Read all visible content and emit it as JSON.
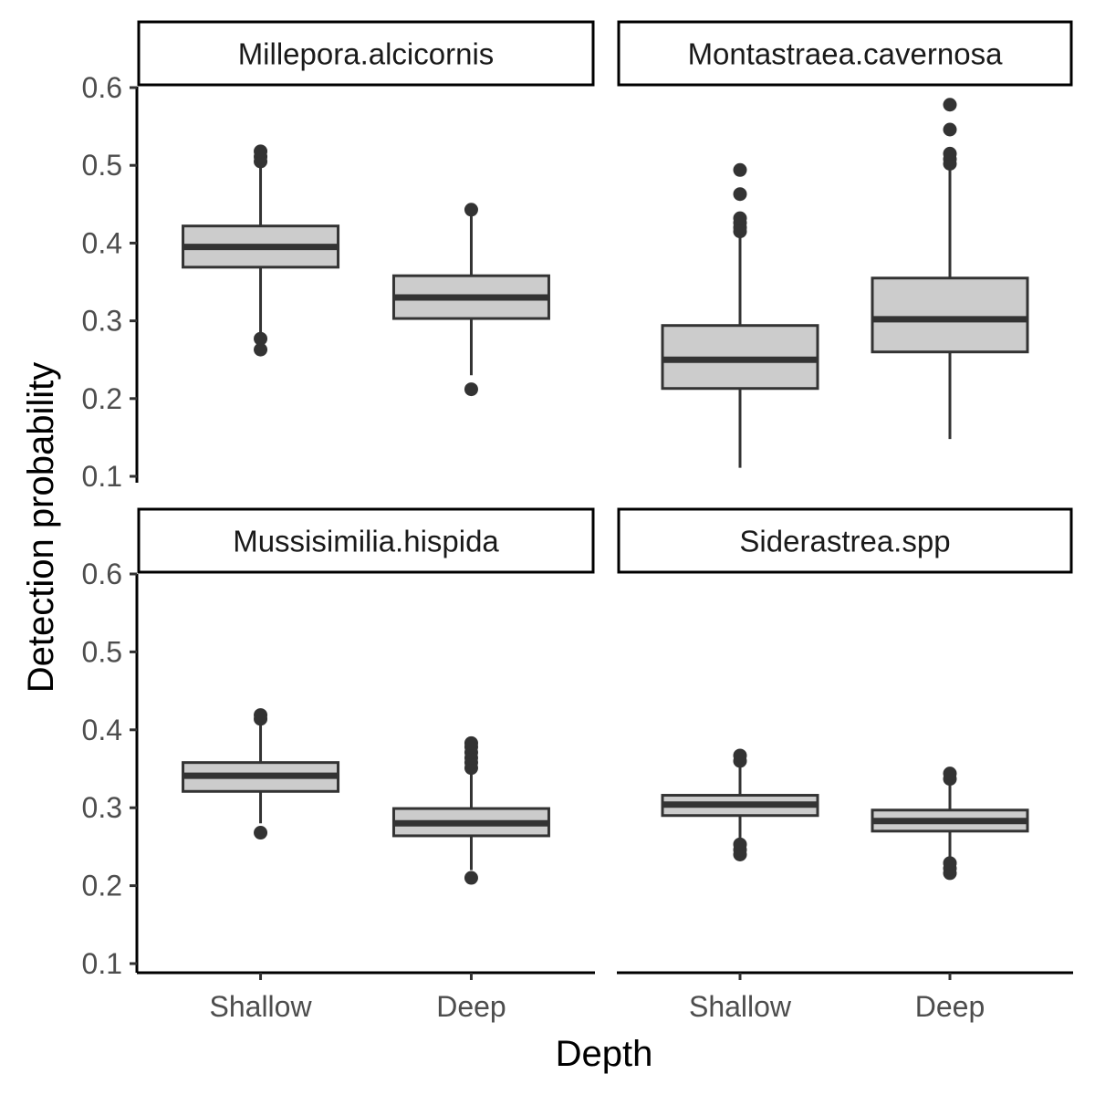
{
  "chart_data": {
    "type": "boxplot",
    "xlabel": "Depth",
    "ylabel": "Detection probability",
    "categories": [
      "Shallow",
      "Deep"
    ],
    "ylim": [
      0.1,
      0.6
    ],
    "yticks": [
      0.1,
      0.2,
      0.3,
      0.4,
      0.5,
      0.6
    ],
    "ytick_labels": [
      "0.1",
      "0.2",
      "0.3",
      "0.4",
      "0.5",
      "0.6"
    ],
    "grid": false,
    "facet_layout": "2x2",
    "colors": {
      "box_fill": "#cccccc",
      "box_line": "#333333",
      "axis": "#000000"
    },
    "panels": [
      {
        "title": "Millepora.alcicornis",
        "boxes": [
          {
            "category": "Shallow",
            "whisker_low": 0.281,
            "q1": 0.369,
            "median": 0.395,
            "q3": 0.422,
            "whisker_high": 0.5,
            "outliers": [
              0.263,
              0.277,
              0.505,
              0.511,
              0.518
            ]
          },
          {
            "category": "Deep",
            "whisker_low": 0.23,
            "q1": 0.303,
            "median": 0.33,
            "q3": 0.358,
            "whisker_high": 0.44,
            "outliers": [
              0.212,
              0.443
            ]
          }
        ]
      },
      {
        "title": "Montastraea.cavernosa",
        "boxes": [
          {
            "category": "Shallow",
            "whisker_low": 0.111,
            "q1": 0.213,
            "median": 0.25,
            "q3": 0.294,
            "whisker_high": 0.41,
            "outliers": [
              0.415,
              0.42,
              0.426,
              0.432,
              0.463,
              0.494
            ]
          },
          {
            "category": "Deep",
            "whisker_low": 0.148,
            "q1": 0.26,
            "median": 0.302,
            "q3": 0.355,
            "whisker_high": 0.497,
            "outliers": [
              0.502,
              0.508,
              0.515,
              0.546,
              0.578
            ]
          }
        ]
      },
      {
        "title": "Mussisimilia.hispida",
        "boxes": [
          {
            "category": "Shallow",
            "whisker_low": 0.28,
            "q1": 0.321,
            "median": 0.341,
            "q3": 0.358,
            "whisker_high": 0.41,
            "outliers": [
              0.268,
              0.414,
              0.419
            ]
          },
          {
            "category": "Deep",
            "whisker_low": 0.22,
            "q1": 0.264,
            "median": 0.28,
            "q3": 0.299,
            "whisker_high": 0.345,
            "outliers": [
              0.21,
              0.351,
              0.358,
              0.364,
              0.371,
              0.378,
              0.383
            ]
          }
        ]
      },
      {
        "title": "Siderastrea.spp",
        "boxes": [
          {
            "category": "Shallow",
            "whisker_low": 0.26,
            "q1": 0.29,
            "median": 0.304,
            "q3": 0.316,
            "whisker_high": 0.355,
            "outliers": [
              0.24,
              0.246,
              0.253,
              0.36,
              0.367
            ]
          },
          {
            "category": "Deep",
            "whisker_low": 0.235,
            "q1": 0.27,
            "median": 0.283,
            "q3": 0.297,
            "whisker_high": 0.333,
            "outliers": [
              0.216,
              0.222,
              0.229,
              0.337,
              0.344
            ]
          }
        ]
      }
    ]
  }
}
